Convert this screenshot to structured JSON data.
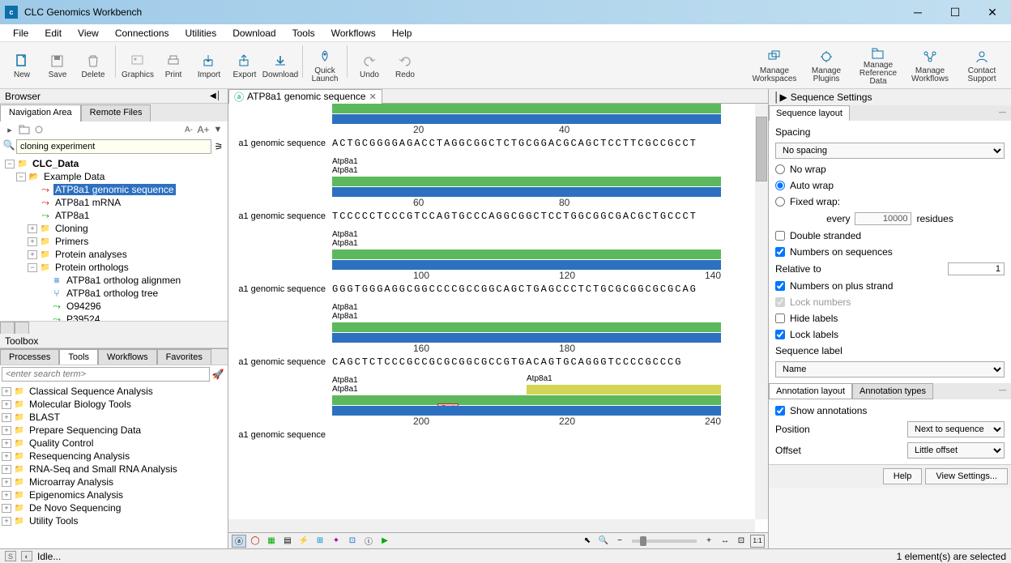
{
  "window": {
    "title": "CLC Genomics Workbench"
  },
  "menubar": [
    "File",
    "Edit",
    "View",
    "Connections",
    "Utilities",
    "Download",
    "Tools",
    "Workflows",
    "Help"
  ],
  "toolbar": {
    "left": [
      {
        "name": "new",
        "label": "New"
      },
      {
        "name": "save",
        "label": "Save"
      },
      {
        "name": "delete",
        "label": "Delete"
      },
      {
        "name": "graphics",
        "label": "Graphics"
      },
      {
        "name": "print",
        "label": "Print"
      },
      {
        "name": "import",
        "label": "Import"
      },
      {
        "name": "export",
        "label": "Export"
      },
      {
        "name": "download",
        "label": "Download"
      },
      {
        "name": "quicklaunch",
        "label": "Quick Launch"
      },
      {
        "name": "undo",
        "label": "Undo"
      },
      {
        "name": "redo",
        "label": "Redo"
      }
    ],
    "right": [
      {
        "name": "workspaces",
        "label": "Manage\nWorkspaces"
      },
      {
        "name": "plugins",
        "label": "Manage\nPlugins"
      },
      {
        "name": "refdata",
        "label": "Manage\nReference Data"
      },
      {
        "name": "workflows",
        "label": "Manage\nWorkflows"
      },
      {
        "name": "support",
        "label": "Contact\nSupport"
      }
    ]
  },
  "browser": {
    "header": "Browser",
    "tabs": {
      "nav": "Navigation Area",
      "remote": "Remote Files"
    },
    "search": "cloning experiment",
    "font_smaller": "A-",
    "font_larger": "A+",
    "tree": [
      {
        "d": 0,
        "t": "−",
        "i": "db",
        "l": "CLC_Data",
        "b": true
      },
      {
        "d": 1,
        "t": "−",
        "i": "fo",
        "l": "Example Data"
      },
      {
        "d": 2,
        "t": "",
        "i": "sq",
        "l": "ATP8a1 genomic sequence",
        "sel": true
      },
      {
        "d": 2,
        "t": "",
        "i": "sq",
        "l": "ATP8a1 mRNA"
      },
      {
        "d": 2,
        "t": "",
        "i": "pr",
        "l": "ATP8a1"
      },
      {
        "d": 2,
        "t": "+",
        "i": "fc",
        "l": "Cloning"
      },
      {
        "d": 2,
        "t": "+",
        "i": "fc",
        "l": "Primers"
      },
      {
        "d": 2,
        "t": "+",
        "i": "fc",
        "l": "Protein analyses"
      },
      {
        "d": 2,
        "t": "−",
        "i": "fc",
        "l": "Protein orthologs"
      },
      {
        "d": 3,
        "t": "",
        "i": "al",
        "l": "ATP8a1 ortholog alignmen"
      },
      {
        "d": 3,
        "t": "",
        "i": "tr",
        "l": "ATP8a1 ortholog tree"
      },
      {
        "d": 3,
        "t": "",
        "i": "pr",
        "l": "O94296"
      },
      {
        "d": 3,
        "t": "",
        "i": "pr",
        "l": "P39524"
      }
    ]
  },
  "toolbox": {
    "header": "Toolbox",
    "tabs": [
      "Processes",
      "Tools",
      "Workflows",
      "Favorites"
    ],
    "active_tab": 1,
    "search_placeholder": "<enter search term>",
    "items": [
      "Classical Sequence Analysis",
      "Molecular Biology Tools",
      "BLAST",
      "Prepare Sequencing Data",
      "Quality Control",
      "Resequencing Analysis",
      "RNA-Seq and Small RNA Analysis",
      "Microarray Analysis",
      "Epigenomics Analysis",
      "De Novo Sequencing",
      "Utility Tools"
    ]
  },
  "editor": {
    "tab_title": "ATP8a1 genomic sequence",
    "row_label": "a1 genomic sequence",
    "annot1": "Atp8a1",
    "annot2": "Atp8a1",
    "psti": "PstI",
    "seq1": "ACTGCGGGGAGACCTAGGCGGCTCTGCGGACGCAGCTCCTTCGCCGCCT",
    "seq2": "TCCCCCTCCCGTCCAGTGCCCAGGCGGCTCCTGGCGGCGACGCTGCCCT",
    "seq3": "GGGTGGGAGGCGGCCCCGCCGGCAGCTGAGCCCTCTGCGCGGCGCGCAG",
    "seq4": "CAGCTCTCCCGCCGCGCGGCGCCGTGACAGTGCAGGGTCCCCGCCCG",
    "ruler": {
      "r1": [
        "20",
        "40"
      ],
      "r2": [
        "60",
        "80"
      ],
      "r3": [
        "100",
        "120",
        "140"
      ],
      "r4": [
        "160",
        "180"
      ],
      "r5": [
        "200",
        "220",
        "240"
      ]
    },
    "colors": {
      "green": "#5cb85c",
      "blue": "#2d70c0",
      "yellow": "#d4d457"
    }
  },
  "settings": {
    "header": "Sequence Settings",
    "layout_tab": "Sequence layout",
    "spacing_label": "Spacing",
    "spacing_value": "No spacing",
    "wrap": {
      "no": "No wrap",
      "auto": "Auto wrap",
      "fixed": "Fixed wrap:"
    },
    "every": "every",
    "every_val": "10000",
    "residues": "residues",
    "double_stranded": "Double stranded",
    "numbers_on_seq": "Numbers on sequences",
    "relative_to": "Relative to",
    "relative_val": "1",
    "numbers_plus": "Numbers on plus strand",
    "lock_numbers": "Lock numbers",
    "hide_labels": "Hide labels",
    "lock_labels": "Lock labels",
    "seq_label": "Sequence label",
    "seq_label_val": "Name",
    "annot_layout": "Annotation layout",
    "annot_types": "Annotation types",
    "show_annot": "Show annotations",
    "position": "Position",
    "position_val": "Next to sequence",
    "offset": "Offset",
    "offset_val": "Little offset",
    "help_btn": "Help",
    "view_btn": "View Settings..."
  },
  "statusbar": {
    "idle": "Idle...",
    "selection": "1 element(s) are selected"
  }
}
